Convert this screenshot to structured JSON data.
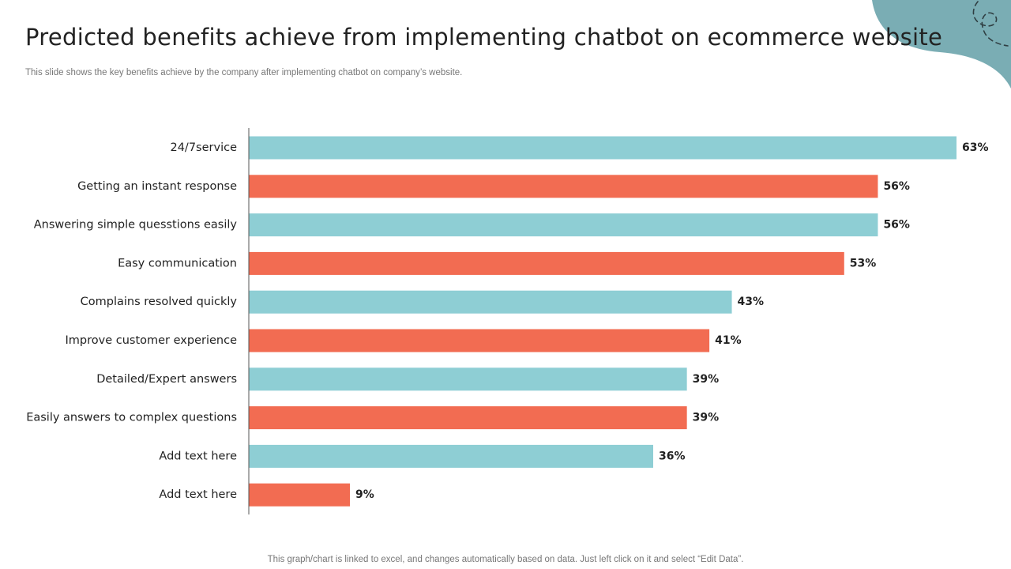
{
  "slide": {
    "title": "Predicted benefits achieve from implementing chatbot on ecommerce website",
    "subtitle": "This slide shows the key benefits achieve by the company after implementing chatbot on company’s website.",
    "footer": "This graph/chart is linked to excel,  and changes automatically based on data. Just left click on it and select “Edit Data”."
  },
  "colors": {
    "teal": "#8ECED4",
    "coral": "#F26C52",
    "corner": "#7AADB4",
    "axis": "#555555"
  },
  "chart_data": {
    "type": "bar",
    "orientation": "horizontal",
    "title": "Predicted benefits achieve from implementing chatbot on ecommerce website",
    "xlabel": "",
    "ylabel": "",
    "xlim": [
      0,
      63
    ],
    "grid": false,
    "categories": [
      "24/7service",
      "Getting an instant response",
      "Answering simple quesstions easily",
      "Easy communication",
      "Complains resolved quickly",
      "Improve customer experience",
      "Detailed/Expert answers",
      "Easily answers to complex questions",
      "Add text here",
      "Add text here"
    ],
    "values": [
      63,
      56,
      56,
      53,
      43,
      41,
      39,
      39,
      36,
      9
    ],
    "value_labels": [
      "63%",
      "56%",
      "56%",
      "53%",
      "43%",
      "41%",
      "39%",
      "39%",
      "36%",
      "9%"
    ],
    "bar_colors": [
      "teal",
      "coral",
      "teal",
      "coral",
      "teal",
      "coral",
      "teal",
      "coral",
      "teal",
      "coral"
    ]
  }
}
